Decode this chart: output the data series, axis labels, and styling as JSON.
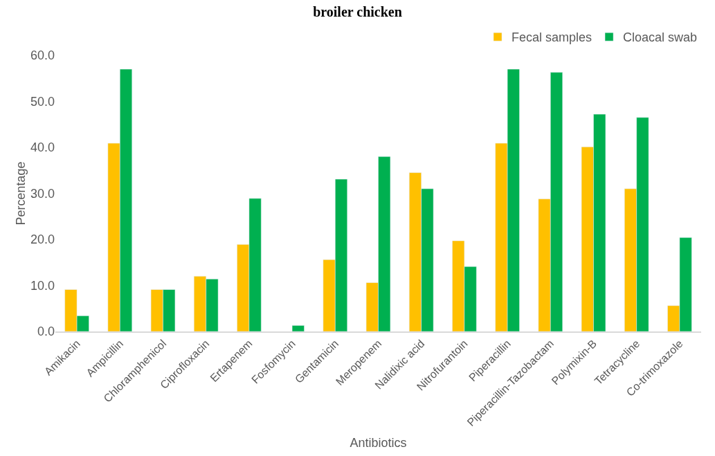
{
  "chart_data": {
    "type": "bar",
    "title": "broiler chicken",
    "xlabel": "Antibiotics",
    "ylabel": "Percentage",
    "categories": [
      "Amikacin",
      "Ampicillin",
      "Chloramphenicol",
      "Ciprofloxacin",
      "Ertapenem",
      "Fosfomycin",
      "Gentamicin",
      "Meropenem",
      "Nalidixic acid",
      "Nitrofurantoin",
      "Piperacillin",
      "Piperacillin-Tazobactam",
      "Polymixin-B",
      "Tetracycline",
      "Co-trimoxazole"
    ],
    "series": [
      {
        "name": "Fecal samples",
        "color": "#ffc000",
        "values": [
          9.1,
          40.9,
          9.1,
          12.0,
          18.9,
          null,
          15.6,
          10.6,
          34.5,
          19.7,
          40.9,
          28.8,
          40.1,
          31.0,
          5.6
        ]
      },
      {
        "name": "Cloacal swab",
        "color": "#00b050",
        "values": [
          3.4,
          57.0,
          9.1,
          11.4,
          28.9,
          1.3,
          33.1,
          38.0,
          31.0,
          14.1,
          57.0,
          56.3,
          47.2,
          46.5,
          20.4
        ]
      }
    ],
    "ylim": [
      0,
      60
    ],
    "yticks": [
      {
        "value": 0,
        "label": "0.0"
      },
      {
        "value": 10,
        "label": "10.0"
      },
      {
        "value": 20,
        "label": "20.0"
      },
      {
        "value": 30,
        "label": "30.0"
      },
      {
        "value": 40,
        "label": "40.0"
      },
      {
        "value": 50,
        "label": "50.0"
      },
      {
        "value": 60,
        "label": "60.0"
      }
    ],
    "grid": false,
    "legend": "top right"
  }
}
